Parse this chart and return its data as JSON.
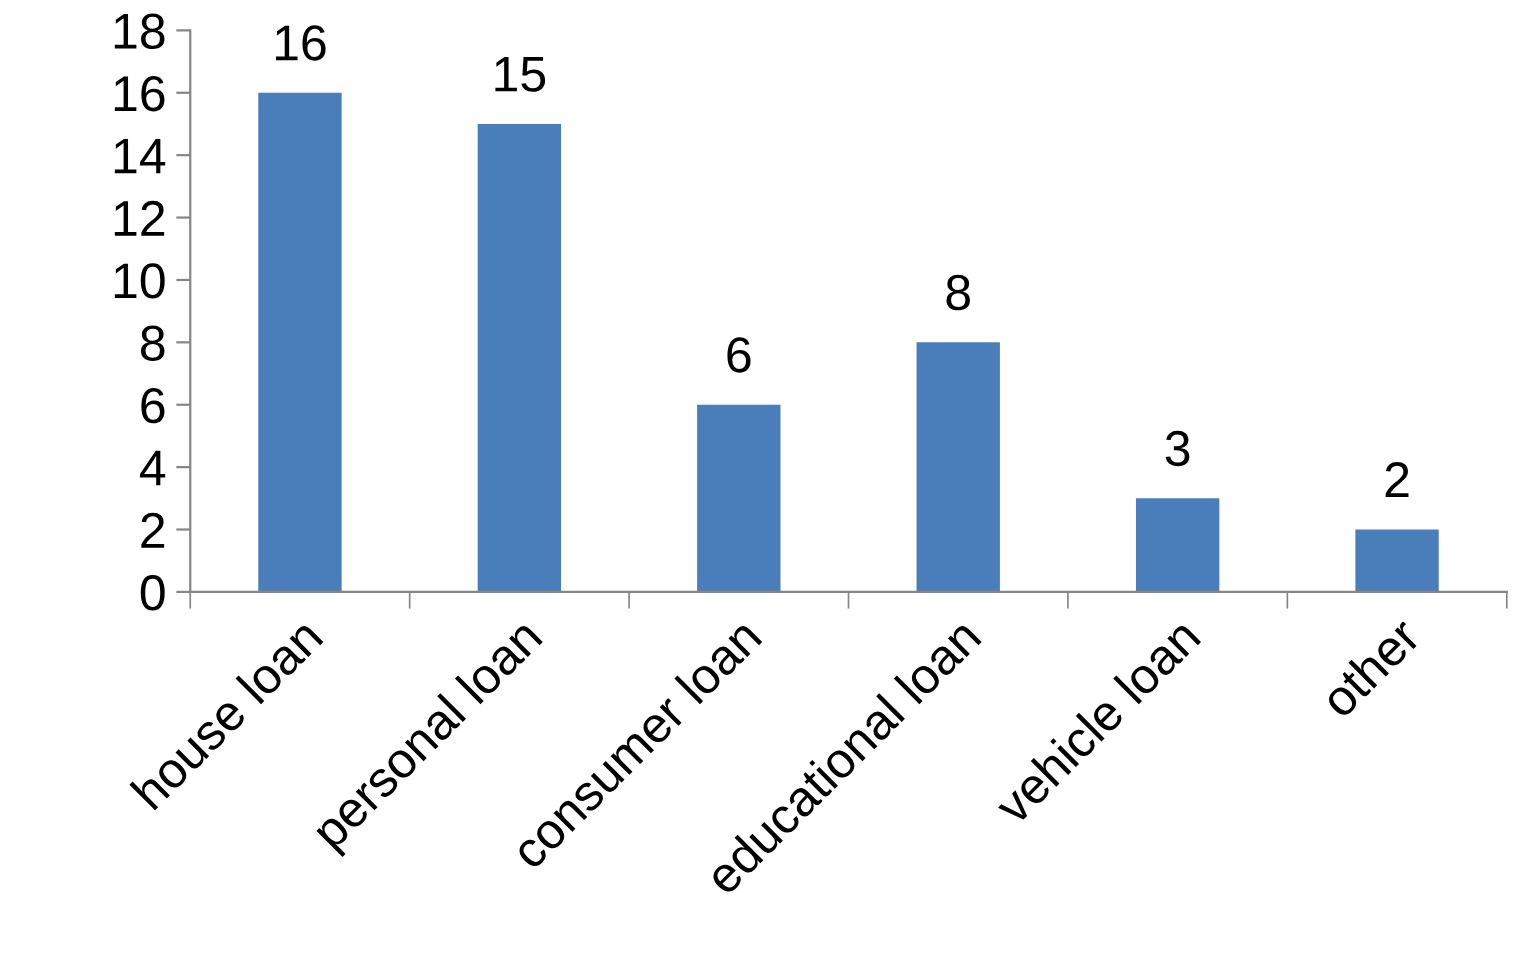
{
  "chart_data": {
    "type": "bar",
    "categories": [
      "house loan",
      "personal loan",
      "consumer loan",
      "educational loan",
      "vehicle loan",
      "other"
    ],
    "values": [
      16,
      15,
      6,
      8,
      3,
      2
    ],
    "color": "#4a7ebb",
    "ylim": [
      0,
      18
    ],
    "yticks": [
      0,
      2,
      4,
      6,
      8,
      10,
      12,
      14,
      16,
      18
    ],
    "data_labels": true,
    "grid": false,
    "legend": false
  }
}
